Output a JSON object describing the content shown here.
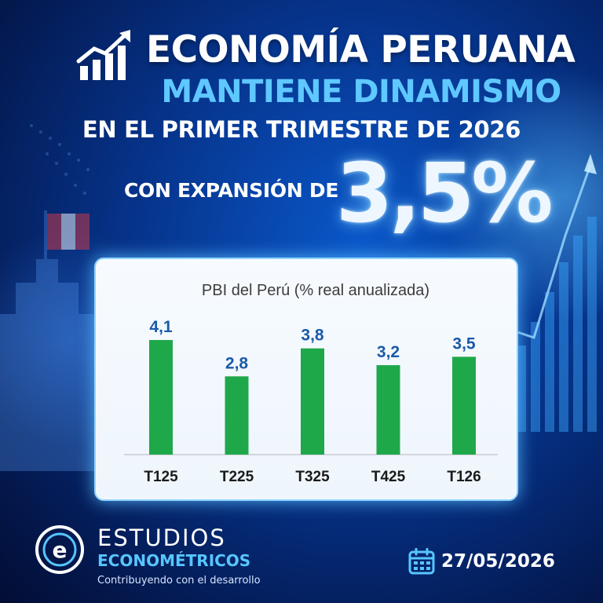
{
  "header": {
    "title_line1": "ECONOMÍA PERUANA",
    "title_line2": "MANTIENE DINAMISMO",
    "title_line3": "EN EL PRIMER TRIMESTRE DE 2026",
    "expansion_label": "CON EXPANSIÓN DE",
    "expansion_value": "3,5%"
  },
  "chart_data": {
    "type": "bar",
    "title": "PBI del Perú  (% real anualizada)",
    "categories": [
      "T125",
      "T225",
      "T325",
      "T425",
      "T126"
    ],
    "values": [
      4.1,
      2.8,
      3.8,
      3.2,
      3.5
    ],
    "data_labels": [
      "4,1",
      "2,8",
      "3,8",
      "3,2",
      "3,5"
    ],
    "ylim": [
      0,
      4.5
    ],
    "grid": false,
    "bar_color": "#1fa84a",
    "label_color": "#1a5aa8"
  },
  "footer": {
    "brand_line1": "ESTUDIOS",
    "brand_line2": "ECONOMÉTRICOS",
    "tagline": "Contribuyendo con el desarrollo",
    "date": "27/05/2026"
  },
  "icons": {
    "title_icon": "growth-chart-icon",
    "logo": "estudios-econometricos-logo",
    "calendar": "calendar-icon"
  },
  "colors": {
    "background": "#06338a",
    "accent": "#5fc8ff"
  }
}
